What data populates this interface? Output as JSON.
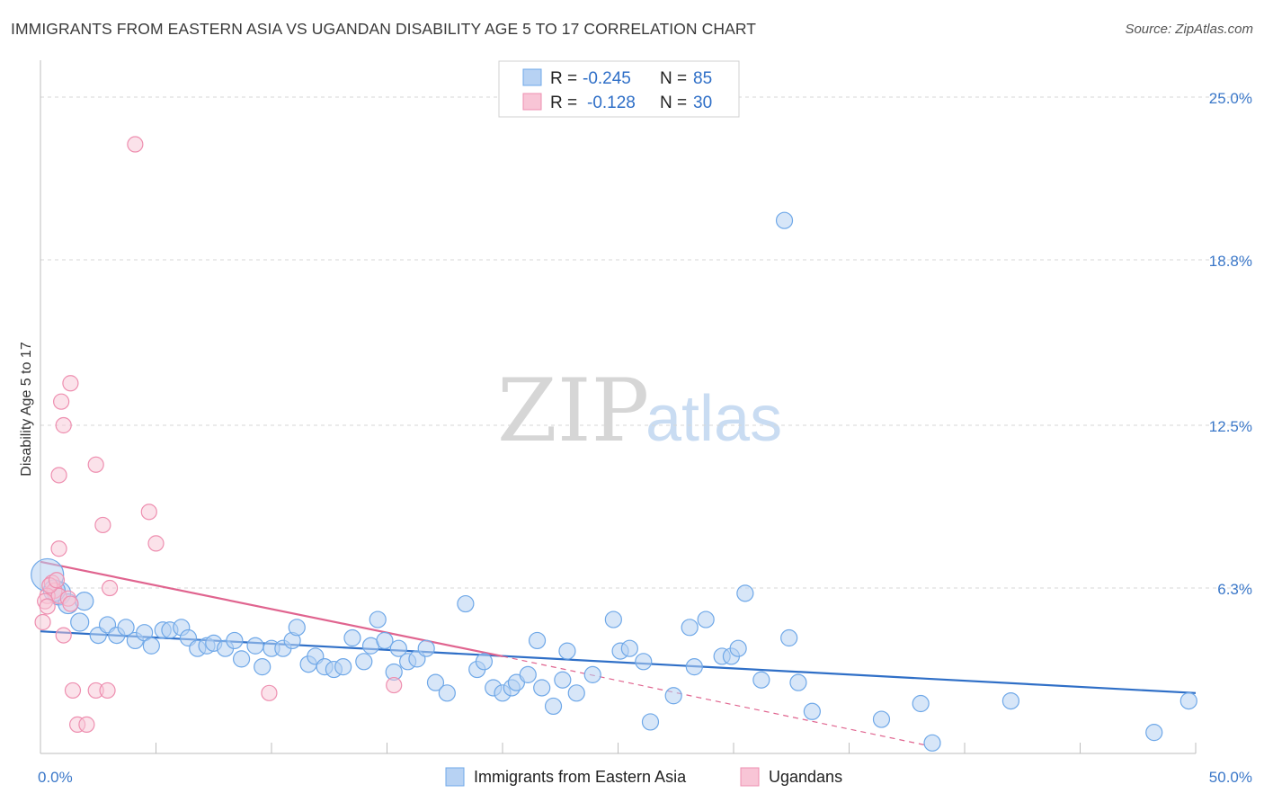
{
  "header": {
    "title": "IMMIGRANTS FROM EASTERN ASIA VS UGANDAN DISABILITY AGE 5 TO 17 CORRELATION CHART",
    "source": "Source: ZipAtlas.com"
  },
  "watermark": {
    "zip": "ZIP",
    "atlas": "atlas"
  },
  "colors": {
    "blue": "#6fa8e8",
    "blue_fill": "#b7d2f3",
    "blue_line": "#2f6fc7",
    "pink": "#ee8fb0",
    "pink_fill": "#f8c5d6",
    "pink_line": "#e0648f",
    "grid": "#d7d7d7",
    "tick_label": "#3b78c9"
  },
  "legend": {
    "rows": [
      {
        "r_label": "R =",
        "r_value": "-0.245",
        "n_label": "N =",
        "n_value": "85"
      },
      {
        "r_label": "R =",
        "r_value": "-0.128",
        "n_label": "N =",
        "n_value": "30"
      }
    ]
  },
  "chart_data": {
    "type": "scatter",
    "title": "IMMIGRANTS FROM EASTERN ASIA VS UGANDAN DISABILITY AGE 5 TO 17 CORRELATION CHART",
    "xlabel": "",
    "ylabel": "Disability Age 5 to 17",
    "xlim": [
      0,
      50
    ],
    "ylim": [
      0,
      26.3
    ],
    "x_tick_labels": [
      "0.0%",
      "50.0%"
    ],
    "y_ticks": [
      6.3,
      12.5,
      18.8,
      25.0
    ],
    "y_tick_labels": [
      "6.3%",
      "12.5%",
      "18.8%",
      "25.0%"
    ],
    "legend_position": "top-center",
    "series": [
      {
        "name": "Immigrants from Eastern Asia",
        "color": "#6fa8e8",
        "r": -0.245,
        "n": 85,
        "trend": {
          "x": [
            0,
            50
          ],
          "y": [
            4.65,
            2.3
          ]
        },
        "points": [
          {
            "x": 0.3,
            "y": 6.8,
            "s": 18
          },
          {
            "x": 0.8,
            "y": 6.1,
            "s": 13
          },
          {
            "x": 1.2,
            "y": 5.7,
            "s": 11
          },
          {
            "x": 1.9,
            "y": 5.8,
            "s": 10
          },
          {
            "x": 1.7,
            "y": 5.0,
            "s": 10
          },
          {
            "x": 2.5,
            "y": 4.5,
            "s": 9
          },
          {
            "x": 2.9,
            "y": 4.9,
            "s": 9
          },
          {
            "x": 3.3,
            "y": 4.5,
            "s": 9
          },
          {
            "x": 3.7,
            "y": 4.8,
            "s": 9
          },
          {
            "x": 4.1,
            "y": 4.3,
            "s": 9
          },
          {
            "x": 4.5,
            "y": 4.6,
            "s": 9
          },
          {
            "x": 4.8,
            "y": 4.1,
            "s": 9
          },
          {
            "x": 5.3,
            "y": 4.7,
            "s": 9
          },
          {
            "x": 5.6,
            "y": 4.7,
            "s": 9
          },
          {
            "x": 6.1,
            "y": 4.8,
            "s": 9
          },
          {
            "x": 6.4,
            "y": 4.4,
            "s": 9
          },
          {
            "x": 6.8,
            "y": 4.0,
            "s": 9
          },
          {
            "x": 7.2,
            "y": 4.1,
            "s": 9
          },
          {
            "x": 7.5,
            "y": 4.2,
            "s": 9
          },
          {
            "x": 8.0,
            "y": 4.0,
            "s": 9
          },
          {
            "x": 8.4,
            "y": 4.3,
            "s": 9
          },
          {
            "x": 8.7,
            "y": 3.6,
            "s": 9
          },
          {
            "x": 9.3,
            "y": 4.1,
            "s": 9
          },
          {
            "x": 9.6,
            "y": 3.3,
            "s": 9
          },
          {
            "x": 10.0,
            "y": 4.0,
            "s": 9
          },
          {
            "x": 10.5,
            "y": 4.0,
            "s": 9
          },
          {
            "x": 10.9,
            "y": 4.3,
            "s": 9
          },
          {
            "x": 11.1,
            "y": 4.8,
            "s": 9
          },
          {
            "x": 11.6,
            "y": 3.4,
            "s": 9
          },
          {
            "x": 11.9,
            "y": 3.7,
            "s": 9
          },
          {
            "x": 12.3,
            "y": 3.3,
            "s": 9
          },
          {
            "x": 12.7,
            "y": 3.2,
            "s": 9
          },
          {
            "x": 13.1,
            "y": 3.3,
            "s": 9
          },
          {
            "x": 13.5,
            "y": 4.4,
            "s": 9
          },
          {
            "x": 14.0,
            "y": 3.5,
            "s": 9
          },
          {
            "x": 14.3,
            "y": 4.1,
            "s": 9
          },
          {
            "x": 14.6,
            "y": 5.1,
            "s": 9
          },
          {
            "x": 14.9,
            "y": 4.3,
            "s": 9
          },
          {
            "x": 15.3,
            "y": 3.1,
            "s": 9
          },
          {
            "x": 15.5,
            "y": 4.0,
            "s": 9
          },
          {
            "x": 15.9,
            "y": 3.5,
            "s": 9
          },
          {
            "x": 16.3,
            "y": 3.6,
            "s": 9
          },
          {
            "x": 16.7,
            "y": 4.0,
            "s": 9
          },
          {
            "x": 17.1,
            "y": 2.7,
            "s": 9
          },
          {
            "x": 17.6,
            "y": 2.3,
            "s": 9
          },
          {
            "x": 18.4,
            "y": 5.7,
            "s": 9
          },
          {
            "x": 18.9,
            "y": 3.2,
            "s": 9
          },
          {
            "x": 19.2,
            "y": 3.5,
            "s": 9
          },
          {
            "x": 19.6,
            "y": 2.5,
            "s": 9
          },
          {
            "x": 20.0,
            "y": 2.3,
            "s": 9
          },
          {
            "x": 20.4,
            "y": 2.5,
            "s": 9
          },
          {
            "x": 20.6,
            "y": 2.7,
            "s": 9
          },
          {
            "x": 21.1,
            "y": 3.0,
            "s": 9
          },
          {
            "x": 21.5,
            "y": 4.3,
            "s": 9
          },
          {
            "x": 21.7,
            "y": 2.5,
            "s": 9
          },
          {
            "x": 22.2,
            "y": 1.8,
            "s": 9
          },
          {
            "x": 22.6,
            "y": 2.8,
            "s": 9
          },
          {
            "x": 22.8,
            "y": 3.9,
            "s": 9
          },
          {
            "x": 23.2,
            "y": 2.3,
            "s": 9
          },
          {
            "x": 23.9,
            "y": 3.0,
            "s": 9
          },
          {
            "x": 24.8,
            "y": 5.1,
            "s": 9
          },
          {
            "x": 25.1,
            "y": 3.9,
            "s": 9
          },
          {
            "x": 25.5,
            "y": 4.0,
            "s": 9
          },
          {
            "x": 26.1,
            "y": 3.5,
            "s": 9
          },
          {
            "x": 26.4,
            "y": 1.2,
            "s": 9
          },
          {
            "x": 27.4,
            "y": 2.2,
            "s": 9
          },
          {
            "x": 28.1,
            "y": 4.8,
            "s": 9
          },
          {
            "x": 28.3,
            "y": 3.3,
            "s": 9
          },
          {
            "x": 28.8,
            "y": 5.1,
            "s": 9
          },
          {
            "x": 29.5,
            "y": 3.7,
            "s": 9
          },
          {
            "x": 29.9,
            "y": 3.7,
            "s": 9
          },
          {
            "x": 30.2,
            "y": 4.0,
            "s": 9
          },
          {
            "x": 30.5,
            "y": 6.1,
            "s": 9
          },
          {
            "x": 31.2,
            "y": 2.8,
            "s": 9
          },
          {
            "x": 32.2,
            "y": 20.3,
            "s": 9
          },
          {
            "x": 32.4,
            "y": 4.4,
            "s": 9
          },
          {
            "x": 32.8,
            "y": 2.7,
            "s": 9
          },
          {
            "x": 33.4,
            "y": 1.6,
            "s": 9
          },
          {
            "x": 36.4,
            "y": 1.3,
            "s": 9
          },
          {
            "x": 38.1,
            "y": 1.9,
            "s": 9
          },
          {
            "x": 38.6,
            "y": 0.4,
            "s": 9
          },
          {
            "x": 42.0,
            "y": 2.0,
            "s": 9
          },
          {
            "x": 48.2,
            "y": 0.8,
            "s": 9
          },
          {
            "x": 49.7,
            "y": 2.0,
            "s": 9
          },
          {
            "x": 0.6,
            "y": 6.2,
            "s": 12
          }
        ]
      },
      {
        "name": "Ugandans",
        "color": "#ee8fb0",
        "r": -0.128,
        "n": 30,
        "trend": {
          "x": [
            0,
            20
          ],
          "y": [
            7.3,
            3.7
          ]
        },
        "trend_dashed": {
          "x": [
            20,
            38.4
          ],
          "y": [
            3.7,
            0.3
          ]
        },
        "points": [
          {
            "x": 4.1,
            "y": 23.2
          },
          {
            "x": 1.3,
            "y": 14.1
          },
          {
            "x": 0.9,
            "y": 13.4
          },
          {
            "x": 1.0,
            "y": 12.5
          },
          {
            "x": 0.8,
            "y": 10.6
          },
          {
            "x": 2.4,
            "y": 11.0
          },
          {
            "x": 4.7,
            "y": 9.2
          },
          {
            "x": 2.7,
            "y": 8.7
          },
          {
            "x": 5.0,
            "y": 8.0
          },
          {
            "x": 0.8,
            "y": 7.8
          },
          {
            "x": 3.0,
            "y": 6.3
          },
          {
            "x": 0.5,
            "y": 6.5
          },
          {
            "x": 0.6,
            "y": 6.2
          },
          {
            "x": 0.3,
            "y": 6.0
          },
          {
            "x": 0.8,
            "y": 6.0
          },
          {
            "x": 1.2,
            "y": 5.9
          },
          {
            "x": 0.2,
            "y": 5.8
          },
          {
            "x": 1.3,
            "y": 5.7
          },
          {
            "x": 0.3,
            "y": 5.6
          },
          {
            "x": 0.1,
            "y": 5.0
          },
          {
            "x": 1.0,
            "y": 4.5
          },
          {
            "x": 1.4,
            "y": 2.4
          },
          {
            "x": 2.4,
            "y": 2.4
          },
          {
            "x": 2.9,
            "y": 2.4
          },
          {
            "x": 1.6,
            "y": 1.1
          },
          {
            "x": 2.0,
            "y": 1.1
          },
          {
            "x": 9.9,
            "y": 2.3
          },
          {
            "x": 15.3,
            "y": 2.6
          },
          {
            "x": 0.4,
            "y": 6.4
          },
          {
            "x": 0.7,
            "y": 6.6
          }
        ]
      }
    ]
  }
}
